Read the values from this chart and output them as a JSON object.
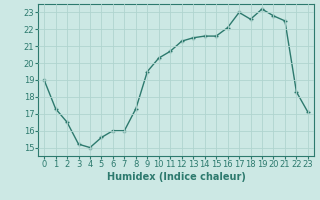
{
  "x": [
    0,
    1,
    2,
    3,
    4,
    5,
    6,
    7,
    8,
    9,
    10,
    11,
    12,
    13,
    14,
    15,
    16,
    17,
    18,
    19,
    20,
    21,
    22,
    23
  ],
  "y": [
    19,
    17.3,
    16.5,
    15.2,
    15.0,
    15.6,
    16.0,
    16.0,
    17.3,
    19.5,
    20.3,
    20.7,
    21.3,
    21.5,
    21.6,
    21.6,
    22.1,
    23.0,
    22.6,
    23.2,
    22.8,
    22.5,
    18.3,
    17.1
  ],
  "xlabel": "Humidex (Indice chaleur)",
  "ylim": [
    14.5,
    23.5
  ],
  "xlim": [
    -0.5,
    23.5
  ],
  "yticks": [
    15,
    16,
    17,
    18,
    19,
    20,
    21,
    22,
    23
  ],
  "xticks": [
    0,
    1,
    2,
    3,
    4,
    5,
    6,
    7,
    8,
    9,
    10,
    11,
    12,
    13,
    14,
    15,
    16,
    17,
    18,
    19,
    20,
    21,
    22,
    23
  ],
  "line_color": "#2d7a6e",
  "marker": "+",
  "marker_size": 3.5,
  "bg_color": "#cce8e4",
  "grid_color": "#b0d4cf",
  "line_width": 1.0,
  "xlabel_fontsize": 7,
  "tick_fontsize": 6
}
